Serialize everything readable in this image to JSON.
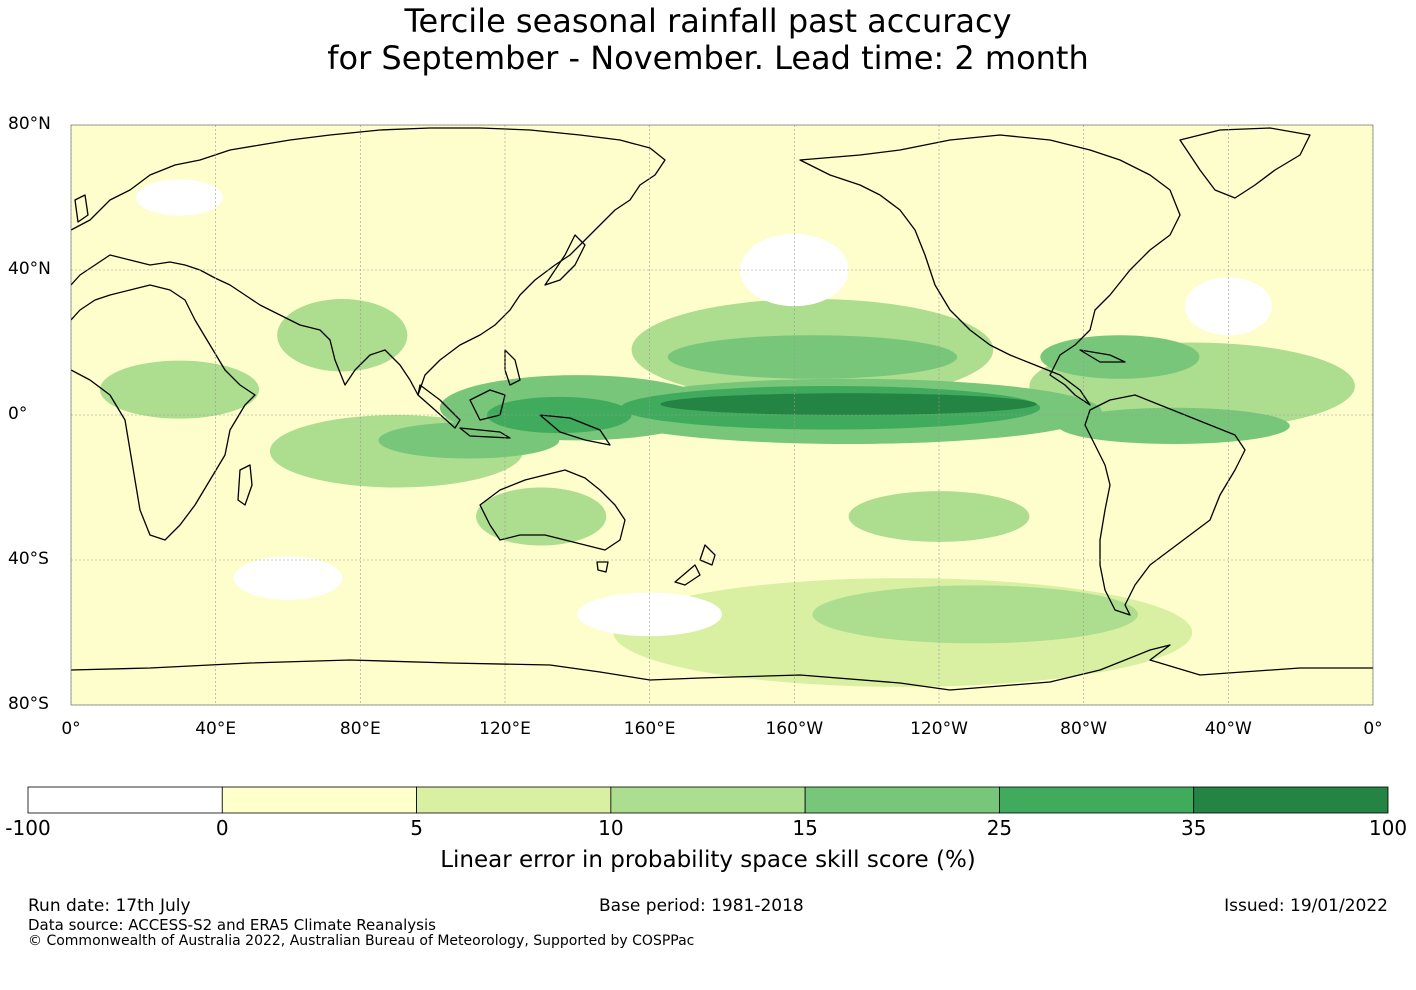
{
  "title_line1": "Tercile seasonal rainfall past accuracy",
  "title_line2": "for September - November. Lead time: 2 month",
  "map": {
    "projection": "equirectangular",
    "lon_range": [
      0,
      360
    ],
    "lat_range": [
      -80,
      80
    ],
    "grid": true,
    "lat_ticks": [
      {
        "lat": 80,
        "label": "80°N"
      },
      {
        "lat": 40,
        "label": "40°N"
      },
      {
        "lat": 0,
        "label": "0°"
      },
      {
        "lat": -40,
        "label": "40°S"
      },
      {
        "lat": -80,
        "label": "80°S"
      }
    ],
    "lon_ticks": [
      {
        "lon": 0,
        "label": "0°"
      },
      {
        "lon": 40,
        "label": "40°E"
      },
      {
        "lon": 80,
        "label": "80°E"
      },
      {
        "lon": 120,
        "label": "120°E"
      },
      {
        "lon": 160,
        "label": "160°E"
      },
      {
        "lon": 200,
        "label": "160°W"
      },
      {
        "lon": 240,
        "label": "120°W"
      },
      {
        "lon": 280,
        "label": "80°W"
      },
      {
        "lon": 320,
        "label": "40°W"
      },
      {
        "lon": 360,
        "label": "0°"
      }
    ],
    "background_color": "#fefecc",
    "skill_regions": [
      {
        "level": 15,
        "lon": 215,
        "lat": 1,
        "rx": 70,
        "ry": 9
      },
      {
        "level": 25,
        "lon": 210,
        "lat": 2,
        "rx": 58,
        "ry": 6
      },
      {
        "level": 35,
        "lon": 215,
        "lat": 3,
        "rx": 52,
        "ry": 3
      },
      {
        "level": 15,
        "lon": 140,
        "lat": 2,
        "rx": 38,
        "ry": 9
      },
      {
        "level": 25,
        "lon": 135,
        "lat": 0,
        "rx": 20,
        "ry": 5
      },
      {
        "level": 15,
        "lon": 205,
        "lat": 16,
        "rx": 40,
        "ry": 6
      },
      {
        "level": 10,
        "lon": 205,
        "lat": 18,
        "rx": 50,
        "ry": 14
      },
      {
        "level": 15,
        "lon": 305,
        "lat": -3,
        "rx": 32,
        "ry": 5
      },
      {
        "level": 15,
        "lon": 290,
        "lat": 16,
        "rx": 22,
        "ry": 6
      },
      {
        "level": 10,
        "lon": 310,
        "lat": 8,
        "rx": 45,
        "ry": 12
      },
      {
        "level": 15,
        "lon": 110,
        "lat": -7,
        "rx": 25,
        "ry": 5
      },
      {
        "level": 10,
        "lon": 90,
        "lat": -10,
        "rx": 35,
        "ry": 10
      },
      {
        "level": 10,
        "lon": 75,
        "lat": 22,
        "rx": 18,
        "ry": 10
      },
      {
        "level": 10,
        "lon": 30,
        "lat": 7,
        "rx": 22,
        "ry": 8
      },
      {
        "level": 10,
        "lon": 130,
        "lat": -28,
        "rx": 18,
        "ry": 8
      },
      {
        "level": 10,
        "lon": 240,
        "lat": -28,
        "rx": 25,
        "ry": 7
      },
      {
        "level": 10,
        "lon": 250,
        "lat": -55,
        "rx": 45,
        "ry": 8
      },
      {
        "level": 5,
        "lon": 230,
        "lat": -60,
        "rx": 80,
        "ry": 15
      },
      {
        "level": -100,
        "lon": 200,
        "lat": 40,
        "rx": 15,
        "ry": 10
      },
      {
        "level": -100,
        "lon": 320,
        "lat": 30,
        "rx": 12,
        "ry": 8
      },
      {
        "level": -100,
        "lon": 60,
        "lat": -45,
        "rx": 15,
        "ry": 6
      },
      {
        "level": -100,
        "lon": 160,
        "lat": -55,
        "rx": 20,
        "ry": 6
      },
      {
        "level": -100,
        "lon": 30,
        "lat": 60,
        "rx": 12,
        "ry": 5
      }
    ]
  },
  "colorbar": {
    "levels": [
      "-100",
      "0",
      "5",
      "10",
      "15",
      "25",
      "35",
      "100"
    ],
    "colors": [
      "#ffffff",
      "#ffffcc",
      "#d9f0a3",
      "#addd8e",
      "#78c679",
      "#41ab5d",
      "#238443"
    ],
    "title": "Linear error in probability space skill score (%)"
  },
  "footer": {
    "run_date": "Run date: 17th July",
    "base_period": "Base period: 1981-2018",
    "issued": "Issued: 19/01/2022",
    "data_source": "Data source: ACCESS-S2 and ERA5 Climate Reanalysis",
    "copyright": "© Commonwealth of Australia 2022, Australian Bureau of Meteorology, Supported by COSPPac"
  }
}
